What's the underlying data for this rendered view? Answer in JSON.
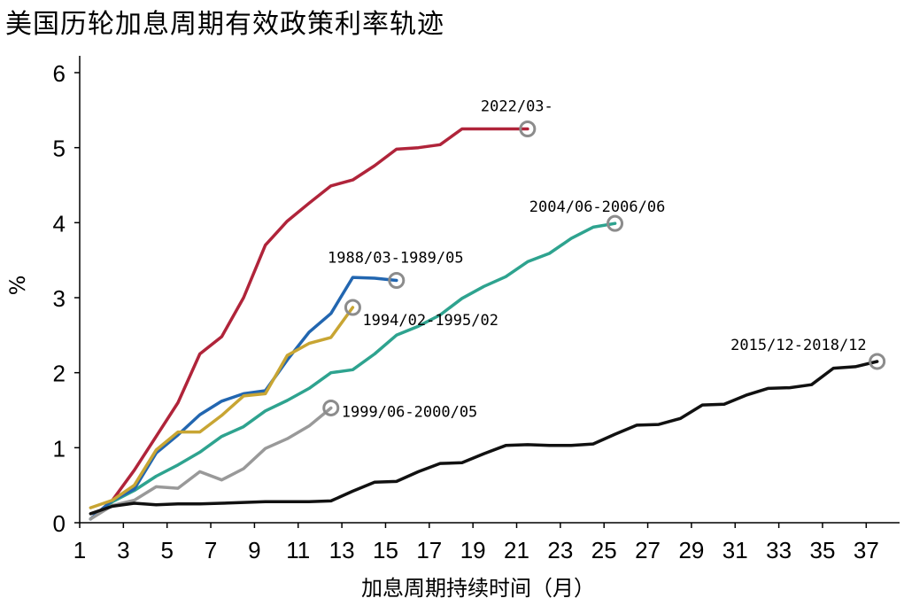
{
  "chart_data": {
    "type": "line",
    "title": "美国历轮加息周期有效政策利率轨迹",
    "xlabel": "加息周期持续时间（月）",
    "ylabel": "%",
    "xlim": [
      1,
      38
    ],
    "ylim": [
      0,
      6
    ],
    "x_ticks": [
      1,
      3,
      5,
      7,
      9,
      11,
      13,
      15,
      17,
      19,
      21,
      23,
      25,
      27,
      29,
      31,
      33,
      35,
      37
    ],
    "y_ticks": [
      0,
      1,
      2,
      3,
      4,
      5,
      6
    ],
    "grid": false,
    "legend": "none",
    "series": [
      {
        "name": "2022/03-",
        "color": "#b0243a",
        "x": [
          1.5,
          2.5,
          3.5,
          4.5,
          5.5,
          6.5,
          7.5,
          8.5,
          9.5,
          10.5,
          11.5,
          12.5,
          13.5,
          14.5,
          15.5,
          16.5,
          17.5,
          18.5,
          19.5,
          20.5,
          21.5
        ],
        "y": [
          0.05,
          0.3,
          0.7,
          1.15,
          1.6,
          2.25,
          2.48,
          3.0,
          3.7,
          4.02,
          4.26,
          4.49,
          4.57,
          4.76,
          4.98,
          5.0,
          5.04,
          5.25,
          5.25,
          5.25,
          5.25
        ]
      },
      {
        "name": "2004/06-2006/06",
        "color": "#2ea38f",
        "x": [
          1.5,
          2.5,
          3.5,
          4.5,
          5.5,
          6.5,
          7.5,
          8.5,
          9.5,
          10.5,
          11.5,
          12.5,
          13.5,
          14.5,
          15.5,
          16.5,
          17.5,
          18.5,
          19.5,
          20.5,
          21.5,
          22.5,
          23.5,
          24.5,
          25.5
        ],
        "y": [
          0.05,
          0.28,
          0.43,
          0.62,
          0.77,
          0.94,
          1.15,
          1.28,
          1.49,
          1.63,
          1.79,
          2.0,
          2.04,
          2.25,
          2.5,
          2.62,
          2.77,
          2.99,
          3.15,
          3.28,
          3.48,
          3.59,
          3.79,
          3.94,
          3.99
        ]
      },
      {
        "name": "1988/03-1989/05",
        "color": "#2266b0",
        "x": [
          1.5,
          2.5,
          3.5,
          4.5,
          5.5,
          6.5,
          7.5,
          8.5,
          9.5,
          10.5,
          11.5,
          12.5,
          13.5,
          14.5,
          15.5
        ],
        "y": [
          0.05,
          0.3,
          0.45,
          0.93,
          1.17,
          1.44,
          1.62,
          1.72,
          1.76,
          2.17,
          2.54,
          2.79,
          3.27,
          3.26,
          3.23
        ]
      },
      {
        "name": "1994/02-1995/02",
        "color": "#c8a533",
        "x": [
          1.5,
          2.5,
          3.5,
          4.5,
          5.5,
          6.5,
          7.5,
          8.5,
          9.5,
          10.5,
          11.5,
          12.5,
          13.5
        ],
        "y": [
          0.2,
          0.3,
          0.5,
          0.97,
          1.21,
          1.21,
          1.43,
          1.69,
          1.72,
          2.23,
          2.39,
          2.47,
          2.87
        ]
      },
      {
        "name": "1999/06-2000/05",
        "color": "#999999",
        "x": [
          1.5,
          2.5,
          3.5,
          4.5,
          5.5,
          6.5,
          7.5,
          8.5,
          9.5,
          10.5,
          11.5,
          12.5
        ],
        "y": [
          0.05,
          0.23,
          0.3,
          0.48,
          0.46,
          0.68,
          0.57,
          0.72,
          0.99,
          1.12,
          1.29,
          1.53
        ]
      },
      {
        "name": "2015/12-2018/12",
        "color": "#111111",
        "x": [
          1.5,
          2.5,
          3.5,
          4.5,
          5.5,
          6.5,
          7.5,
          8.5,
          9.5,
          10.5,
          11.5,
          12.5,
          13.5,
          14.5,
          15.5,
          16.5,
          17.5,
          18.5,
          19.5,
          20.5,
          21.5,
          22.5,
          23.5,
          24.5,
          25.5,
          26.5,
          27.5,
          28.5,
          29.5,
          30.5,
          31.5,
          32.5,
          33.5,
          34.5,
          35.5,
          36.5,
          37.5
        ],
        "y": [
          0.12,
          0.22,
          0.26,
          0.24,
          0.25,
          0.25,
          0.26,
          0.27,
          0.28,
          0.28,
          0.28,
          0.29,
          0.42,
          0.54,
          0.55,
          0.68,
          0.79,
          0.8,
          0.92,
          1.03,
          1.04,
          1.03,
          1.03,
          1.05,
          1.18,
          1.3,
          1.31,
          1.39,
          1.57,
          1.58,
          1.7,
          1.79,
          1.8,
          1.84,
          2.06,
          2.08,
          2.15
        ]
      }
    ]
  }
}
